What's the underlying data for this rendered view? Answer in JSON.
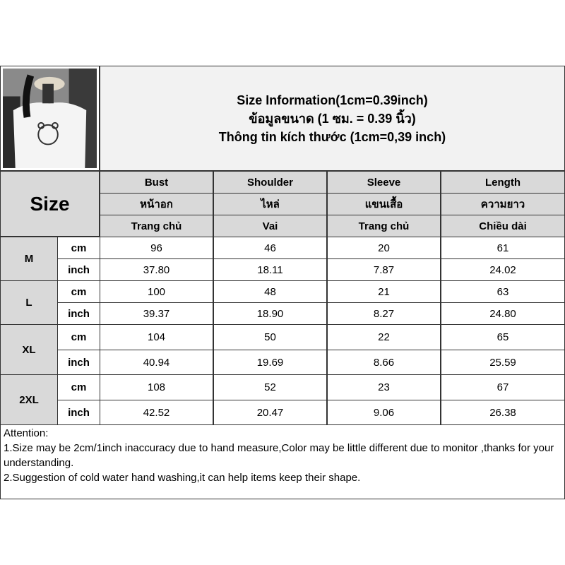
{
  "title": {
    "line1": "Size Information(1cm=0.39inch)",
    "line2": "ข้อมูลขนาด (1 ซม. = 0.39 นิ้ว)",
    "line3": "Thông tin kích thước (1cm=0,39 inch)"
  },
  "size_label": "Size",
  "columns": [
    {
      "en": "Bust",
      "th": "หน้าอก",
      "vi": "Trang chủ"
    },
    {
      "en": "Shoulder",
      "th": "ไหล่",
      "vi": "Vai"
    },
    {
      "en": "Sleeve",
      "th": "แขนเสื้อ",
      "vi": "Trang chủ"
    },
    {
      "en": "Length",
      "th": "ความยาว",
      "vi": "Chiều dài"
    }
  ],
  "rows": [
    {
      "size": "M",
      "cm_label": "cm",
      "inch_label": "inch",
      "cm": [
        "96",
        "46",
        "20",
        "61"
      ],
      "inch": [
        "37.80",
        "18.11",
        "7.87",
        "24.02"
      ]
    },
    {
      "size": "L",
      "cm_label": "cm",
      "inch_label": "inch",
      "cm": [
        "100",
        "48",
        "21",
        "63"
      ],
      "inch": [
        "39.37",
        "18.90",
        "8.27",
        "24.80"
      ]
    },
    {
      "size": "XL",
      "cm_label": "cm",
      "inch_label": "inch",
      "cm": [
        "104",
        "50",
        "22",
        "65"
      ],
      "inch": [
        "40.94",
        "19.69",
        "8.66",
        "25.59"
      ]
    },
    {
      "size": "2XL",
      "cm_label": "cm",
      "inch_label": "inch",
      "cm": [
        "108",
        "52",
        "23",
        "67"
      ],
      "inch": [
        "42.52",
        "20.47",
        "9.06",
        "26.38"
      ]
    }
  ],
  "attention": {
    "heading": "Attention:",
    "note1": "1.Size may be 2cm/1inch inaccuracy due to hand measure,Color may be little different due to monitor ,thanks for your understanding.",
    "note2": "2.Suggestion of cold water hand washing,it can help items keep their shape."
  }
}
